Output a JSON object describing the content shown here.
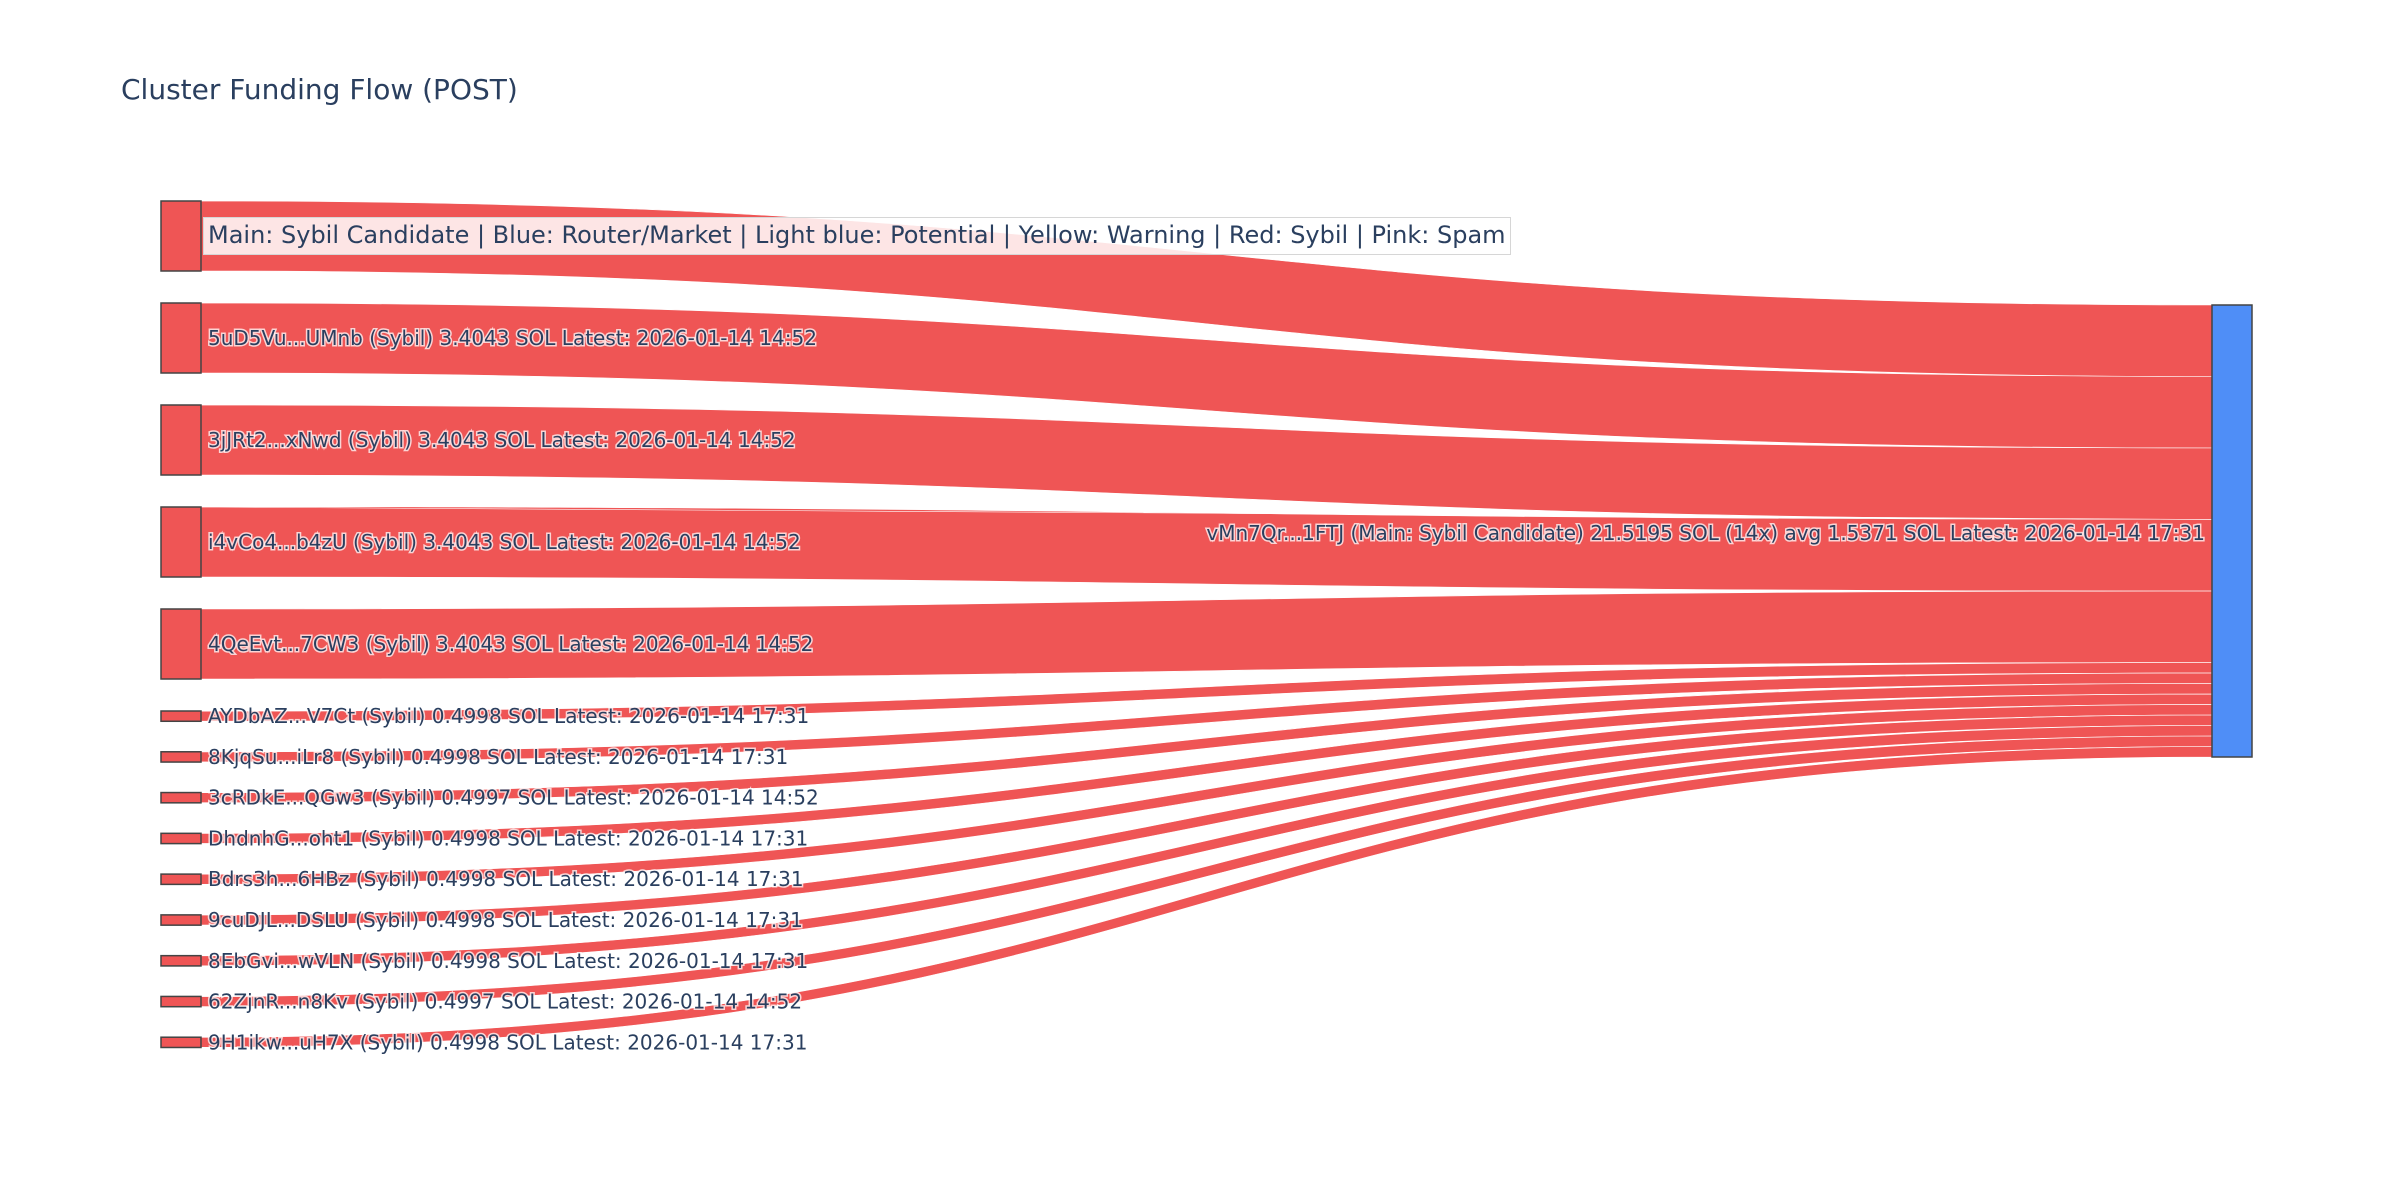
{
  "title": "Cluster Funding Flow (POST)",
  "legend_text": "Main: Sybil Candidate  |  Blue: Router/Market | Light blue: Potential | Yellow: Warning | Red: Sybil | Pink: Spam",
  "colors": {
    "sybil": "#ef5555",
    "main": "#4f8ef7",
    "node_border": "#444444",
    "text": "#2a3f5f"
  },
  "chart_data": {
    "type": "sankey",
    "title": "Cluster Funding Flow (POST)",
    "target": {
      "label": "vMn7Qr...1FTJ (Main: Sybil Candidate) 21.5195 SOL (14x) avg 1.5371 SOL Latest: 2026-01-14 17:31",
      "value": 21.5195,
      "color": "#4f8ef7"
    },
    "sources": [
      {
        "label": "",
        "value": 3.4043
      },
      {
        "label": "5uD5Vu...UMnb (Sybil) 3.4043 SOL Latest: 2026-01-14 14:52",
        "value": 3.4043
      },
      {
        "label": "3jJRt2...xNwd (Sybil) 3.4043 SOL Latest: 2026-01-14 14:52",
        "value": 3.4043
      },
      {
        "label": "i4vCo4...b4zU (Sybil) 3.4043 SOL Latest: 2026-01-14 14:52",
        "value": 3.4043
      },
      {
        "label": "4QeEvt...7CW3 (Sybil) 3.4043 SOL Latest: 2026-01-14 14:52",
        "value": 3.4043
      },
      {
        "label": "AYDbAZ...V7Ct (Sybil) 0.4998 SOL Latest: 2026-01-14 17:31",
        "value": 0.4998
      },
      {
        "label": "8KjqSu...iLr8 (Sybil) 0.4998 SOL Latest: 2026-01-14 17:31",
        "value": 0.4998
      },
      {
        "label": "3cRDkE...QGw3 (Sybil) 0.4997 SOL Latest: 2026-01-14 14:52",
        "value": 0.4997
      },
      {
        "label": "DhdnhG...oht1 (Sybil) 0.4998 SOL Latest: 2026-01-14 17:31",
        "value": 0.4998
      },
      {
        "label": "Bdrs3h...6HBz (Sybil) 0.4998 SOL Latest: 2026-01-14 17:31",
        "value": 0.4998
      },
      {
        "label": "9cuDJL...DSLU (Sybil) 0.4998 SOL Latest: 2026-01-14 17:31",
        "value": 0.4998
      },
      {
        "label": "8EbGvi...wVLN (Sybil) 0.4998 SOL Latest: 2026-01-14 17:31",
        "value": 0.4998
      },
      {
        "label": "62ZjnR...n8Kv (Sybil) 0.4997 SOL Latest: 2026-01-14 14:52",
        "value": 0.4997
      },
      {
        "label": "9H1ikw...uH7X (Sybil) 0.4998 SOL Latest: 2026-01-14 17:31",
        "value": 0.4998
      }
    ]
  }
}
